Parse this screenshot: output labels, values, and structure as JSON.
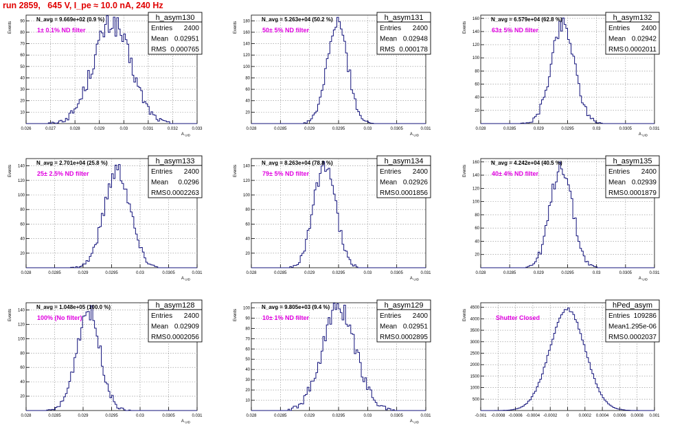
{
  "run_title": "run 2859,   645 V, I_pe ≈ 10.0 nA, 240 Hz",
  "colors": {
    "histogram": "#10107a",
    "title": "#e00000",
    "filter_label": "#e000e0",
    "grid": "#888888",
    "frame": "#000000"
  },
  "chart_data": [
    {
      "type": "bar",
      "name": "h_asym130",
      "stats": {
        "entries": "2400",
        "mean": "0.02951",
        "rms": "0.000765"
      },
      "navg": "N_avg = 9.669e+02 (0.9 %)",
      "filter_label": "1± 0.1% ND filter",
      "ylabel": "Events",
      "xlabel": "A_UID",
      "xlim": [
        0.026,
        0.033
      ],
      "ylim": [
        0,
        95
      ],
      "xticks": [
        "0.026",
        "0.027",
        "0.028",
        "0.029",
        "0.03",
        "0.031",
        "0.032",
        "0.033"
      ],
      "yticks": [
        "10",
        "20",
        "30",
        "40",
        "50",
        "60",
        "70",
        "80",
        "90"
      ],
      "curve": {
        "mean": 0.02951,
        "sigma": 0.000765,
        "peak": 88
      },
      "grid": true
    },
    {
      "type": "bar",
      "name": "h_asym131",
      "stats": {
        "entries": "2400",
        "mean": "0.02948",
        "rms": "0.000178"
      },
      "navg": "N_avg = 5.263e+04 (50.2 %)",
      "filter_label": "50± 5% ND filter",
      "ylabel": "Events",
      "xlabel": "A_UID",
      "xlim": [
        0.028,
        0.031
      ],
      "ylim": [
        0,
        190
      ],
      "xticks": [
        "0.028",
        "0.0285",
        "0.029",
        "0.0295",
        "0.03",
        "0.0305",
        "0.031"
      ],
      "yticks": [
        "20",
        "40",
        "60",
        "80",
        "100",
        "120",
        "140",
        "160",
        "180"
      ],
      "curve": {
        "mean": 0.02948,
        "sigma": 0.000178,
        "peak": 175
      },
      "grid": true
    },
    {
      "type": "bar",
      "name": "h_asym132",
      "stats": {
        "entries": "2400",
        "mean": "0.02942",
        "rms": "0.0002011"
      },
      "navg": "N_avg = 6.579e+04 (62.8 %)",
      "filter_label": "63± 5% ND filter",
      "ylabel": "Events",
      "xlabel": "A_UID",
      "xlim": [
        0.028,
        0.031
      ],
      "ylim": [
        0,
        165
      ],
      "xticks": [
        "0.028",
        "0.0285",
        "0.029",
        "0.0295",
        "0.03",
        "0.0305",
        "0.031"
      ],
      "yticks": [
        "20",
        "40",
        "60",
        "80",
        "100",
        "120",
        "140",
        "160"
      ],
      "curve": {
        "mean": 0.02942,
        "sigma": 0.0002011,
        "peak": 152
      },
      "grid": true
    },
    {
      "type": "bar",
      "name": "h_asym133",
      "stats": {
        "entries": "2400",
        "mean": "0.0296",
        "rms": "0.0002263"
      },
      "navg": "N_avg = 2.701e+04 (25.8 %)",
      "filter_label": "25± 2.5% ND filter",
      "ylabel": "Events",
      "xlabel": "A_UID",
      "xlim": [
        0.028,
        0.031
      ],
      "ylim": [
        0,
        150
      ],
      "xticks": [
        "0.028",
        "0.0285",
        "0.029",
        "0.0295",
        "0.03",
        "0.0305",
        "0.031"
      ],
      "yticks": [
        "20",
        "40",
        "60",
        "80",
        "100",
        "120",
        "140"
      ],
      "curve": {
        "mean": 0.0296,
        "sigma": 0.0002263,
        "peak": 135
      },
      "grid": true
    },
    {
      "type": "bar",
      "name": "h_asym134",
      "stats": {
        "entries": "2400",
        "mean": "0.02926",
        "rms": "0.0001856"
      },
      "navg": "N_avg = 8.263e+04 (78.8 %)",
      "filter_label": "79± 5% ND filter",
      "ylabel": "Events",
      "xlabel": "A_UID",
      "xlim": [
        0.028,
        0.031
      ],
      "ylim": [
        0,
        150
      ],
      "xticks": [
        "0.028",
        "0.0285",
        "0.029",
        "0.0295",
        "0.03",
        "0.0305",
        "0.031"
      ],
      "yticks": [
        "20",
        "40",
        "60",
        "80",
        "100",
        "120",
        "140"
      ],
      "curve": {
        "mean": 0.02926,
        "sigma": 0.0001856,
        "peak": 145
      },
      "grid": true
    },
    {
      "type": "bar",
      "name": "h_asym135",
      "stats": {
        "entries": "2400",
        "mean": "0.02939",
        "rms": "0.0001879"
      },
      "navg": "N_avg = 4.242e+04 (40.5 %)",
      "filter_label": "40± 4% ND filter",
      "ylabel": "Events",
      "xlabel": "A_UID",
      "xlim": [
        0.028,
        0.031
      ],
      "ylim": [
        0,
        165
      ],
      "xticks": [
        "0.028",
        "0.0285",
        "0.029",
        "0.0295",
        "0.03",
        "0.0305",
        "0.031"
      ],
      "yticks": [
        "20",
        "40",
        "60",
        "80",
        "100",
        "120",
        "140",
        "160"
      ],
      "curve": {
        "mean": 0.02939,
        "sigma": 0.0001879,
        "peak": 155
      },
      "grid": true
    },
    {
      "type": "bar",
      "name": "h_asym128",
      "stats": {
        "entries": "2400",
        "mean": "0.02909",
        "rms": "0.0002056"
      },
      "navg": "N_avg = 1.048e+05 (100.0 %)",
      "filter_label": "100% (No filter)",
      "ylabel": "Events",
      "xlabel": "A_UID",
      "xlim": [
        0.028,
        0.031
      ],
      "ylim": [
        0,
        150
      ],
      "xticks": [
        "0.028",
        "0.0285",
        "0.029",
        "0.0295",
        "0.03",
        "0.0305",
        "0.031"
      ],
      "yticks": [
        "20",
        "40",
        "60",
        "80",
        "100",
        "120",
        "140"
      ],
      "curve": {
        "mean": 0.02909,
        "sigma": 0.0002056,
        "peak": 140
      },
      "grid": true
    },
    {
      "type": "bar",
      "name": "h_asym129",
      "stats": {
        "entries": "2400",
        "mean": "0.02951",
        "rms": "0.0002895"
      },
      "navg": "N_avg = 9.805e+03 (9.4 %)",
      "filter_label": "10± 1% ND filter",
      "ylabel": "Events",
      "xlabel": "A_UID",
      "xlim": [
        0.028,
        0.031
      ],
      "ylim": [
        0,
        105
      ],
      "xticks": [
        "0.028",
        "0.0285",
        "0.029",
        "0.0295",
        "0.03",
        "0.0305",
        "0.031"
      ],
      "yticks": [
        "10",
        "20",
        "30",
        "40",
        "50",
        "60",
        "70",
        "80",
        "90",
        "100"
      ],
      "curve": {
        "mean": 0.02951,
        "sigma": 0.0002895,
        "peak": 100
      },
      "grid": true
    },
    {
      "type": "bar",
      "name": "hPed_asym",
      "stats": {
        "entries": "109286",
        "mean": "-1.295e-06",
        "rms": "0.0002037"
      },
      "navg": "",
      "filter_label": "Shutter Closed",
      "ylabel": "Events",
      "xlabel": "",
      "xlim": [
        -0.001,
        0.001
      ],
      "ylim": [
        0,
        4700
      ],
      "xticks": [
        "-0.001",
        "-0.0008",
        "-0.0006",
        "-0.0004",
        "-0.0002",
        "0",
        "0.0002",
        "0.0004",
        "0.0006",
        "0.0008",
        "0.001"
      ],
      "yticks": [
        "500",
        "1000",
        "1500",
        "2000",
        "2500",
        "3000",
        "3500",
        "4000",
        "4500"
      ],
      "curve": {
        "mean": -1.295e-06,
        "sigma": 0.0002037,
        "peak": 4420
      },
      "grid": true
    }
  ]
}
